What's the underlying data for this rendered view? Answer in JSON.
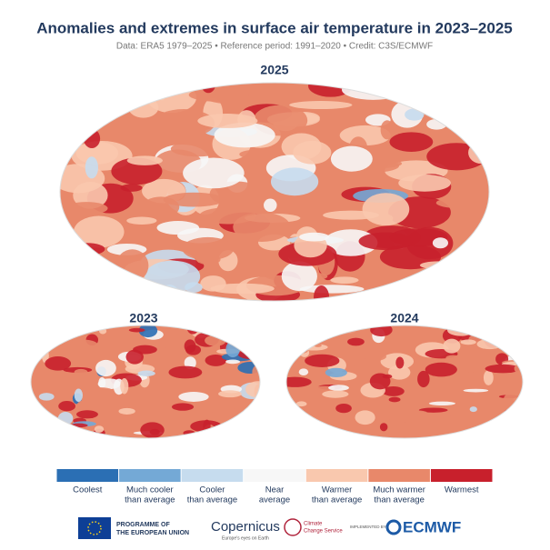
{
  "header": {
    "title": "Anomalies and extremes in surface air temperature in 2023–2025",
    "subtitle": "Data: ERA5 1979–2025 • Reference period: 1991–2020 • Credit: C3S/ECMWF"
  },
  "maps": [
    {
      "label": "2025"
    },
    {
      "label": "2023"
    },
    {
      "label": "2024"
    }
  ],
  "legend": {
    "items": [
      {
        "label": [
          "Coolest"
        ],
        "color": "#2b6fb4"
      },
      {
        "label": [
          "Much cooler",
          "than average"
        ],
        "color": "#74a9d6"
      },
      {
        "label": [
          "Cooler",
          "than average"
        ],
        "color": "#c6dcee"
      },
      {
        "label": [
          "Near",
          "average"
        ],
        "color": "#f7f7f7"
      },
      {
        "label": [
          "Warmer",
          "than average"
        ],
        "color": "#f9c8ae"
      },
      {
        "label": [
          "Much warmer",
          "than average"
        ],
        "color": "#e8886a"
      },
      {
        "label": [
          "Warmest"
        ],
        "color": "#c8202c"
      }
    ]
  },
  "footer": {
    "eu": [
      "PROGRAMME OF",
      "THE EUROPEAN UNION"
    ],
    "copernicus": {
      "name": "Copernicus",
      "tagline": "Europe's eyes on Earth"
    },
    "c3s": [
      "Climate",
      "Change Service"
    ],
    "implemented_by": "IMPLEMENTED BY",
    "ecmwf": "ECMWF"
  }
}
